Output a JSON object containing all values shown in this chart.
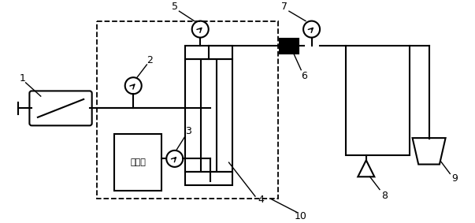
{
  "bg_color": "#ffffff",
  "line_color": "#000000",
  "lw": 1.5,
  "fig_w": 6.03,
  "fig_h": 2.83,
  "dpi": 100,
  "chinese_text": "地层水",
  "label_fontsize": 9
}
